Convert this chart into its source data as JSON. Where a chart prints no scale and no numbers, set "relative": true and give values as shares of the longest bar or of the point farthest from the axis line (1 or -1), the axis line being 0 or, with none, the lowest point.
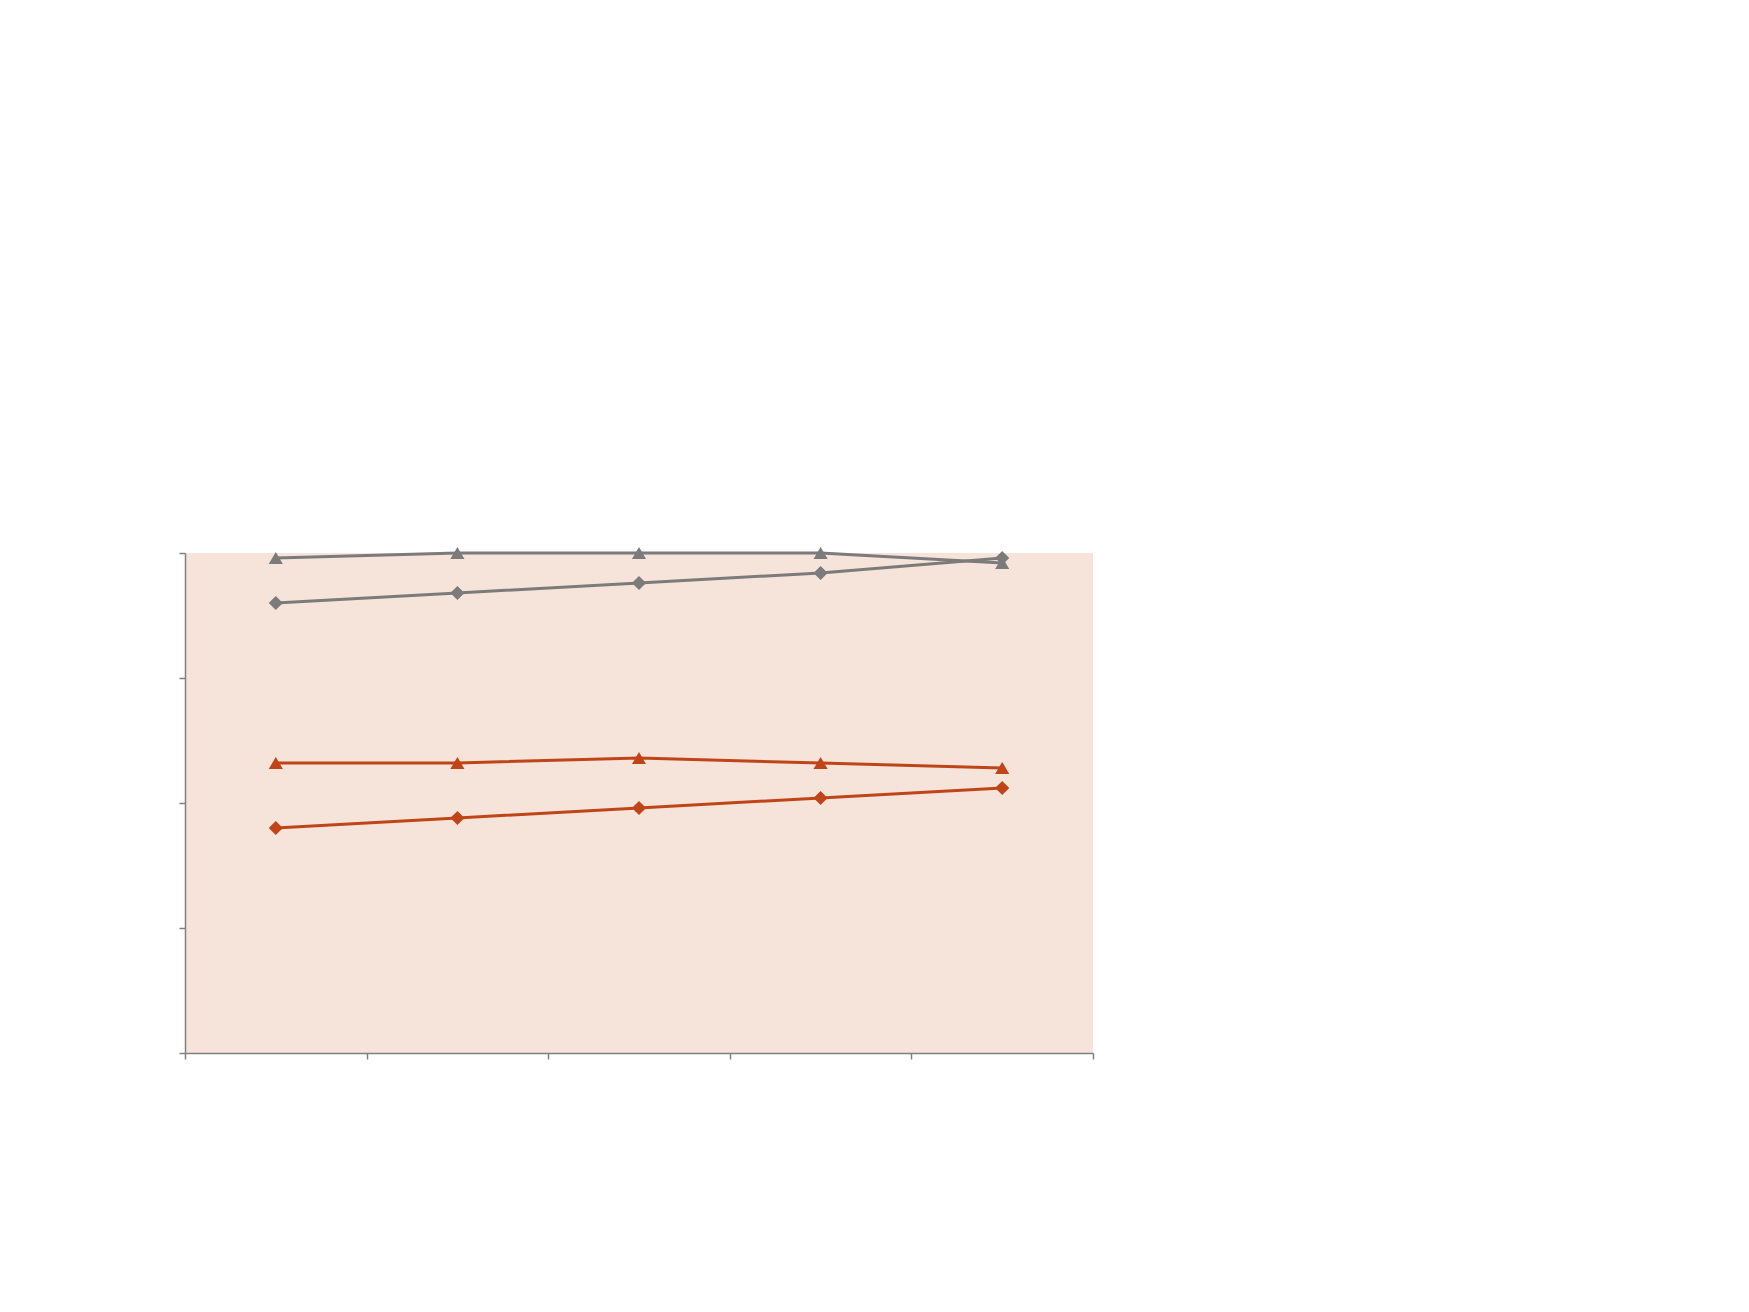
{
  "chart_data": {
    "type": "line",
    "relative": true,
    "categories": [
      null,
      null,
      null,
      null,
      null
    ],
    "series": [
      {
        "color": "#bf4519",
        "marker": "triangle",
        "values": [
          0.58,
          0.58,
          0.59,
          0.58,
          0.57
        ]
      },
      {
        "color": "#7b7b7b",
        "marker": "triangle",
        "values": [
          0.99,
          1,
          1,
          1,
          0.98
        ]
      },
      {
        "color": "#bf4519",
        "marker": "diamond",
        "values": [
          0.45,
          0.47,
          0.49,
          0.51,
          0.53
        ]
      },
      {
        "color": "#7b7b7b",
        "marker": "diamond",
        "values": [
          0.9,
          0.92,
          0.94,
          0.96,
          0.99
        ]
      }
    ],
    "line_style": "solid"
  }
}
